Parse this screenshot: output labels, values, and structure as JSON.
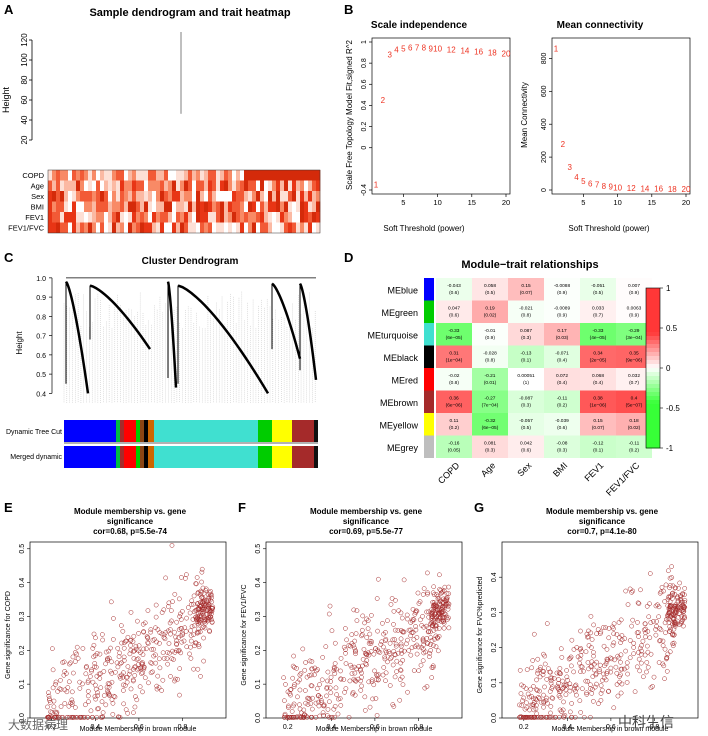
{
  "panels": {
    "A": {
      "label": "A",
      "title": "Sample dendrogram and trait heatmap",
      "ylabel": "Height",
      "yticks": [
        "20",
        "40",
        "60",
        "80",
        "100",
        "120"
      ],
      "traits": [
        "COPD",
        "Age",
        "Sex",
        "BMI",
        "FEV1",
        "FEV1/FVC"
      ]
    },
    "B": {
      "label": "B",
      "left_title": "Scale independence",
      "left_xlabel": "Soft Threshold (power)",
      "left_ylabel": "Scale Free Topology Model Fit,signed R^2",
      "right_title": "Mean connectivity",
      "right_xlabel": "Soft Threshold (power)",
      "right_ylabel": "Mean Connectivity"
    },
    "C": {
      "label": "C",
      "title": "Cluster Dendrogram",
      "ylabel": "Height",
      "yticks": [
        "0.4",
        "0.5",
        "0.6",
        "0.7",
        "0.8",
        "0.9",
        "1.0"
      ],
      "bar1": "Dynamic Tree Cut",
      "bar2": "Merged dynamic"
    },
    "D": {
      "label": "D",
      "title": "Module−trait relationships",
      "colorbar_ticks": [
        "1",
        "0.5",
        "0",
        "-0.5",
        "-1"
      ]
    },
    "E": {
      "label": "E",
      "title1": "Module membership vs. gene",
      "title2": "significance",
      "title3": "cor=0.68, p=5.5e-74",
      "xlabel": "Module Membership in brown module",
      "ylabel": "Gene significance for COPD"
    },
    "F": {
      "label": "F",
      "title1": "Module membership vs. gene",
      "title2": "significance",
      "title3": "cor=0.69, p=5.5e-77",
      "xlabel": "Module Membership in brown module",
      "ylabel": "Gene significance for FEV1/FVC"
    },
    "G": {
      "label": "G",
      "title1": "Module membership vs. gene",
      "title2": "significance",
      "title3": "cor=0.7, p=4.1e-80",
      "xlabel": "Module Membership in brown module",
      "ylabel": "Gene significance for FVC%predicted"
    }
  },
  "watermark_left": "大数据病理",
  "watermark_right": "中科生信",
  "colors": {
    "accent_red": "#e32",
    "scatter": "#a52a2a",
    "module_blue": "#0000ff",
    "module_green": "#00cc00",
    "module_turquoise": "#40e0d0",
    "module_black": "#000000",
    "module_red": "#ff0000",
    "module_brown": "#a52a2a",
    "module_yellow": "#ffff00",
    "module_grey": "#bebebe"
  },
  "chart_data": [
    {
      "id": "B-left",
      "type": "scatter",
      "title": "Scale independence",
      "xlabel": "Soft Threshold (power)",
      "ylabel": "Scale Free Topology Model Fit,signed R^2",
      "x": [
        1,
        2,
        3,
        4,
        5,
        6,
        7,
        8,
        9,
        10,
        12,
        14,
        16,
        18,
        20
      ],
      "y": [
        -0.35,
        0.45,
        0.88,
        0.93,
        0.94,
        0.95,
        0.95,
        0.95,
        0.94,
        0.94,
        0.93,
        0.92,
        0.91,
        0.9,
        0.89
      ],
      "xlim": [
        1,
        20
      ],
      "ylim": [
        -0.4,
        1.0
      ],
      "xticks": [
        5,
        10,
        15,
        20
      ],
      "yticks": [
        -0.4,
        0.0,
        0.2,
        0.4,
        0.6,
        0.8,
        1.0
      ]
    },
    {
      "id": "B-right",
      "type": "scatter",
      "title": "Mean connectivity",
      "xlabel": "Soft Threshold (power)",
      "ylabel": "Mean Connectivity",
      "x": [
        1,
        2,
        3,
        4,
        5,
        6,
        7,
        8,
        9,
        10,
        12,
        14,
        16,
        18,
        20
      ],
      "y": [
        860,
        280,
        140,
        80,
        55,
        40,
        32,
        25,
        20,
        16,
        12,
        10,
        8,
        7,
        6
      ],
      "xlim": [
        1,
        20
      ],
      "ylim": [
        0,
        900
      ],
      "xticks": [
        5,
        10,
        15,
        20
      ],
      "yticks": [
        0,
        200,
        400,
        600,
        800
      ]
    },
    {
      "id": "D",
      "type": "heatmap",
      "title": "Module−trait relationships",
      "rows": [
        "MEblue",
        "MEgreen",
        "MEturquoise",
        "MEblack",
        "MEred",
        "MEbrown",
        "MEyellow",
        "MEgrey"
      ],
      "row_colors": [
        "#0000ff",
        "#00cc00",
        "#40e0d0",
        "#000000",
        "#ff0000",
        "#a52a2a",
        "#ffff00",
        "#bebebe"
      ],
      "columns": [
        "COPD",
        "Age",
        "Sex",
        "BMI",
        "FEV1",
        "FEV1/FVC"
      ],
      "cor": [
        [
          "-0.043",
          "0.058",
          "0.15",
          "-0.0088",
          "-0.051",
          "0.007"
        ],
        [
          "0.047",
          "0.19",
          "-0.021",
          "-0.0089",
          "0.033",
          "0.0063"
        ],
        [
          "-0.33",
          "-0.01",
          "0.087",
          "0.17",
          "-0.33",
          "-0.29"
        ],
        [
          "0.31",
          "-0.028",
          "-0.13",
          "-0.071",
          "0.34",
          "0.35"
        ],
        [
          "-0.02",
          "-0.21",
          "0.00051",
          "0.072",
          "0.068",
          "0.032"
        ],
        [
          "0.36",
          "-0.27",
          "-0.087",
          "-0.11",
          "0.38",
          "0.4"
        ],
        [
          "0.11",
          "-0.32",
          "-0.057",
          "-0.039",
          "0.15",
          "0.18"
        ],
        [
          "-0.16",
          "0.081",
          "0.042",
          "-0.08",
          "-0.12",
          "-0.11"
        ]
      ],
      "pval": [
        [
          "(0.6)",
          "(0.5)",
          "(0.07)",
          "(0.9)",
          "(0.5)",
          "(0.9)"
        ],
        [
          "(0.6)",
          "(0.02)",
          "(0.8)",
          "(0.9)",
          "(0.7)",
          "(0.9)"
        ],
        [
          "(6e−05)",
          "(0.9)",
          "(0.3)",
          "(0.03)",
          "(4e−05)",
          "(3e−04)"
        ],
        [
          "(1e−04)",
          "(0.8)",
          "(0.1)",
          "(0.4)",
          "(2e−05)",
          "(9e−06)"
        ],
        [
          "(0.8)",
          "(0.01)",
          "(1)",
          "(0.4)",
          "(0.4)",
          "(0.7)"
        ],
        [
          "(6e−06)",
          "(7e−04)",
          "(0.3)",
          "(0.2)",
          "(1e−06)",
          "(5e−07)"
        ],
        [
          "(0.2)",
          "(6e−05)",
          "(0.5)",
          "(0.6)",
          "(0.07)",
          "(0.02)"
        ],
        [
          "(0.05)",
          "(0.3)",
          "(0.6)",
          "(0.3)",
          "(0.1)",
          "(0.2)"
        ]
      ],
      "colorscale": [
        "#00ee00",
        "#ffffff",
        "#ee2222"
      ],
      "zlim": [
        -1,
        1
      ]
    },
    {
      "id": "E",
      "type": "scatter",
      "title": "Module membership vs. gene significance",
      "subtitle": "cor=0.68, p=5.5e-74",
      "xlabel": "Module Membership in brown module",
      "ylabel": "Gene significance for COPD",
      "cor": 0.68,
      "xlim": [
        0.1,
        1.0
      ],
      "ylim": [
        0,
        0.52
      ],
      "xticks": [
        0.2,
        0.4,
        0.6,
        0.8
      ],
      "yticks": [
        0.0,
        0.1,
        0.2,
        0.3,
        0.4,
        0.5
      ],
      "n_points": 520
    },
    {
      "id": "F",
      "type": "scatter",
      "title": "Module membership vs. gene significance",
      "subtitle": "cor=0.69, p=5.5e-77",
      "xlabel": "Module Membership in brown module",
      "ylabel": "Gene significance for FEV1/FVC",
      "cor": 0.69,
      "xlim": [
        0.1,
        1.0
      ],
      "ylim": [
        0,
        0.52
      ],
      "xticks": [
        0.2,
        0.4,
        0.6,
        0.8
      ],
      "yticks": [
        0.0,
        0.1,
        0.2,
        0.3,
        0.4,
        0.5
      ],
      "n_points": 520
    },
    {
      "id": "G",
      "type": "scatter",
      "title": "Module membership vs. gene significance",
      "subtitle": "cor=0.7, p=4.1e-80",
      "xlabel": "Module Membership in brown module",
      "ylabel": "Gene significance for FVC%predicted",
      "cor": 0.7,
      "xlim": [
        0.1,
        1.0
      ],
      "ylim": [
        0,
        0.5
      ],
      "xticks": [
        0.2,
        0.4,
        0.6,
        0.8
      ],
      "yticks": [
        0.0,
        0.1,
        0.2,
        0.3,
        0.4
      ],
      "n_points": 520
    }
  ]
}
